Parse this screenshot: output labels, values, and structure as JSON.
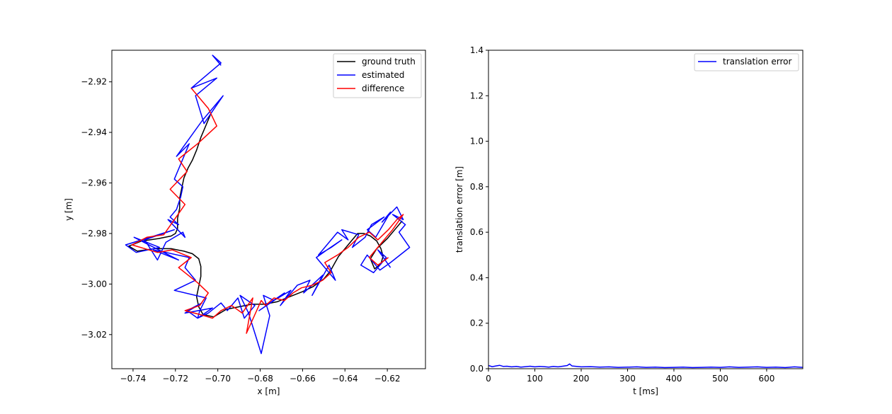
{
  "colors": {
    "ground_truth": "#000000",
    "estimated": "#0000ff",
    "difference": "#ff0000",
    "translation_error": "#0000ff"
  },
  "chart_data": [
    {
      "type": "line",
      "title": "",
      "xlabel": "x [m]",
      "ylabel": "y [m]",
      "xlim": [
        -0.75,
        -0.602
      ],
      "ylim": [
        -3.0335,
        -2.9075
      ],
      "xticks": [
        -0.74,
        -0.72,
        -0.7,
        -0.68,
        -0.66,
        -0.64,
        -0.62
      ],
      "xtick_labels": [
        "−0.74",
        "−0.72",
        "−0.70",
        "−0.68",
        "−0.66",
        "−0.64",
        "−0.62"
      ],
      "yticks": [
        -2.92,
        -2.94,
        -2.96,
        -2.98,
        -3.0,
        -3.02
      ],
      "ytick_labels": [
        "−2.92",
        "−2.94",
        "−2.96",
        "−2.98",
        "−3.00",
        "−3.02"
      ],
      "grid": false,
      "legend_position": "top-right",
      "legend": [
        "ground truth",
        "estimated",
        "difference"
      ],
      "series": [
        {
          "name": "ground truth",
          "color": "#000000",
          "x": [
            -0.7035,
            -0.7055,
            -0.708,
            -0.71,
            -0.712,
            -0.714,
            -0.716,
            -0.717,
            -0.718,
            -0.718,
            -0.719,
            -0.719,
            -0.72,
            -0.722,
            -0.728,
            -0.736,
            -0.742,
            -0.738,
            -0.73,
            -0.722,
            -0.716,
            -0.712,
            -0.709,
            -0.708,
            -0.708,
            -0.709,
            -0.71,
            -0.709,
            -0.707,
            -0.702,
            -0.696,
            -0.69,
            -0.684,
            -0.678,
            -0.672,
            -0.666,
            -0.66,
            -0.655,
            -0.65,
            -0.647,
            -0.645,
            -0.643,
            -0.64,
            -0.637,
            -0.634,
            -0.631,
            -0.628,
            -0.625,
            -0.623,
            -0.622,
            -0.623,
            -0.626,
            -0.628,
            -0.625,
            -0.62,
            -0.616,
            -0.613
          ],
          "y": [
            -2.933,
            -2.937,
            -2.942,
            -2.947,
            -2.951,
            -2.954,
            -2.958,
            -2.962,
            -2.966,
            -2.97,
            -2.974,
            -2.978,
            -2.98,
            -2.981,
            -2.982,
            -2.983,
            -2.985,
            -2.987,
            -2.986,
            -2.986,
            -2.987,
            -2.988,
            -2.99,
            -2.993,
            -2.997,
            -3.001,
            -3.005,
            -3.009,
            -3.012,
            -3.013,
            -3.01,
            -3.009,
            -3.008,
            -3.008,
            -3.007,
            -3.005,
            -3.003,
            -3.001,
            -2.998,
            -2.995,
            -2.992,
            -2.989,
            -2.986,
            -2.983,
            -2.98,
            -2.98,
            -2.981,
            -2.983,
            -2.986,
            -2.989,
            -2.992,
            -2.994,
            -2.99,
            -2.986,
            -2.982,
            -2.978,
            -2.975
          ]
        },
        {
          "name": "estimated",
          "color": "#0000ff",
          "x": [
            -0.6985,
            -0.7025,
            -0.6985,
            -0.7125,
            -0.7005,
            -0.7105,
            -0.7065,
            -0.6975,
            -0.7075,
            -0.7195,
            -0.7135,
            -0.7205,
            -0.7165,
            -0.7175,
            -0.7195,
            -0.7225,
            -0.7185,
            -0.7235,
            -0.7155,
            -0.7165,
            -0.7245,
            -0.7285,
            -0.7345,
            -0.7205,
            -0.7435,
            -0.7385,
            -0.7275,
            -0.7395,
            -0.7185,
            -0.7305,
            -0.7245,
            -0.7135,
            -0.7155,
            -0.7105,
            -0.7205,
            -0.7055,
            -0.7085,
            -0.7095,
            -0.7145,
            -0.7075,
            -0.7155,
            -0.7025,
            -0.7095,
            -0.7045,
            -0.6985,
            -0.6955,
            -0.6905,
            -0.6875,
            -0.6825,
            -0.6895,
            -0.6855,
            -0.6795,
            -0.6755,
            -0.6785,
            -0.6735,
            -0.6805,
            -0.6685,
            -0.6755,
            -0.6655,
            -0.6705,
            -0.6625,
            -0.6565,
            -0.6595,
            -0.6505,
            -0.6555,
            -0.6475,
            -0.6445,
            -0.6535,
            -0.6485,
            -0.6415,
            -0.6465,
            -0.6525,
            -0.6485,
            -0.6435,
            -0.6385,
            -0.6415,
            -0.6335,
            -0.6365,
            -0.6305,
            -0.6275,
            -0.6215,
            -0.6295,
            -0.6255,
            -0.6185,
            -0.6225,
            -0.6155,
            -0.6125,
            -0.6175,
            -0.6115,
            -0.6145,
            -0.6095,
            -0.6185,
            -0.6235,
            -0.6295,
            -0.6325,
            -0.6265,
            -0.6205,
            -0.6245,
            -0.6185
          ],
          "y": [
            -2.9135,
            -2.9095,
            -2.9125,
            -2.9225,
            -2.9185,
            -2.9255,
            -2.9365,
            -2.9255,
            -2.9355,
            -2.9495,
            -2.9445,
            -2.9585,
            -2.9615,
            -2.9655,
            -2.9705,
            -2.9735,
            -2.9765,
            -2.9745,
            -2.9815,
            -2.9795,
            -2.9835,
            -2.9905,
            -2.9825,
            -2.9785,
            -2.9845,
            -2.9875,
            -2.9855,
            -2.9815,
            -2.9905,
            -2.9865,
            -2.9875,
            -2.9895,
            -2.9935,
            -2.9985,
            -3.0025,
            -3.0055,
            -3.0105,
            -3.0135,
            -3.0105,
            -3.0075,
            -3.0115,
            -3.0095,
            -3.0135,
            -3.0115,
            -3.0075,
            -3.0105,
            -3.0055,
            -3.0135,
            -3.0085,
            -3.0045,
            -3.0115,
            -3.0275,
            -3.0125,
            -3.0045,
            -3.0065,
            -3.0105,
            -3.0035,
            -3.0075,
            -3.0025,
            -3.0085,
            -3.0005,
            -2.9985,
            -3.0035,
            -2.9965,
            -3.0045,
            -2.9925,
            -2.9985,
            -2.9895,
            -2.9865,
            -2.9825,
            -2.9855,
            -2.9885,
            -2.9845,
            -2.9795,
            -2.9825,
            -2.9785,
            -2.9805,
            -2.9855,
            -2.9815,
            -2.9765,
            -2.9735,
            -2.9785,
            -2.9815,
            -2.9715,
            -2.9755,
            -2.9695,
            -2.9745,
            -2.9725,
            -2.9765,
            -2.9795,
            -2.9855,
            -2.9915,
            -2.9945,
            -2.9885,
            -2.9925,
            -2.9955,
            -2.9895,
            -2.9865,
            -2.9935
          ]
        },
        {
          "name": "difference",
          "color": "#ff0000",
          "x": [
            -0.7125,
            -0.7045,
            -0.7005,
            -0.7095,
            -0.7185,
            -0.7145,
            -0.7225,
            -0.7155,
            -0.7205,
            -0.7255,
            -0.7335,
            -0.7405,
            -0.7285,
            -0.7215,
            -0.7125,
            -0.7185,
            -0.7095,
            -0.7045,
            -0.7085,
            -0.7155,
            -0.7065,
            -0.7025,
            -0.6985,
            -0.6935,
            -0.6885,
            -0.6835,
            -0.6865,
            -0.6795,
            -0.6775,
            -0.6735,
            -0.6685,
            -0.6645,
            -0.6605,
            -0.6555,
            -0.6505,
            -0.6465,
            -0.6495,
            -0.6435,
            -0.6385,
            -0.6335,
            -0.6285,
            -0.6245,
            -0.6195,
            -0.6155,
            -0.6125,
            -0.6175,
            -0.6225,
            -0.6285,
            -0.6245,
            -0.6195
          ],
          "y": [
            -2.9225,
            -2.9305,
            -2.9375,
            -2.9445,
            -2.9505,
            -2.9555,
            -2.9625,
            -2.9685,
            -2.9745,
            -2.9805,
            -2.9815,
            -2.9845,
            -2.9875,
            -2.9865,
            -2.9895,
            -2.9935,
            -2.9995,
            -3.0035,
            -3.0085,
            -3.0105,
            -3.0125,
            -3.0135,
            -3.0105,
            -3.0085,
            -3.0115,
            -3.0055,
            -3.0195,
            -3.0065,
            -3.0085,
            -3.0055,
            -3.0065,
            -3.0035,
            -3.0015,
            -3.0005,
            -2.9985,
            -2.9955,
            -2.9915,
            -2.9885,
            -2.9855,
            -2.9815,
            -2.9795,
            -2.9825,
            -2.9785,
            -2.9745,
            -2.9725,
            -2.9785,
            -2.9835,
            -2.9895,
            -2.9925,
            -2.9895
          ]
        }
      ]
    },
    {
      "type": "line",
      "title": "",
      "xlabel": "t [ms]",
      "ylabel": "translation error [m]",
      "xlim": [
        0,
        678
      ],
      "ylim": [
        0,
        1.4
      ],
      "xticks": [
        0,
        100,
        200,
        300,
        400,
        500,
        600
      ],
      "xtick_labels": [
        "0",
        "100",
        "200",
        "300",
        "400",
        "500",
        "600"
      ],
      "yticks": [
        0.0,
        0.2,
        0.4,
        0.6,
        0.8,
        1.0,
        1.2,
        1.4
      ],
      "ytick_labels": [
        "0.0",
        "0.2",
        "0.4",
        "0.6",
        "0.8",
        "1.0",
        "1.2",
        "1.4"
      ],
      "grid": false,
      "legend_position": "top-right",
      "legend": [
        "translation error"
      ],
      "series": [
        {
          "name": "translation error",
          "color": "#0000ff",
          "x": [
            0,
            8,
            16,
            24,
            32,
            40,
            50,
            60,
            70,
            80,
            90,
            100,
            110,
            120,
            130,
            140,
            150,
            160,
            170,
            175,
            180,
            190,
            200,
            220,
            240,
            260,
            280,
            300,
            320,
            340,
            360,
            380,
            400,
            420,
            440,
            460,
            480,
            500,
            520,
            540,
            560,
            580,
            600,
            620,
            640,
            660,
            678
          ],
          "y": [
            0.014,
            0.009,
            0.012,
            0.015,
            0.01,
            0.011,
            0.008,
            0.01,
            0.007,
            0.009,
            0.011,
            0.008,
            0.01,
            0.009,
            0.007,
            0.01,
            0.008,
            0.011,
            0.014,
            0.021,
            0.012,
            0.01,
            0.008,
            0.009,
            0.007,
            0.008,
            0.006,
            0.007,
            0.008,
            0.006,
            0.007,
            0.005,
            0.006,
            0.007,
            0.005,
            0.006,
            0.007,
            0.006,
            0.008,
            0.006,
            0.007,
            0.008,
            0.006,
            0.007,
            0.005,
            0.008,
            0.006
          ]
        }
      ]
    }
  ]
}
